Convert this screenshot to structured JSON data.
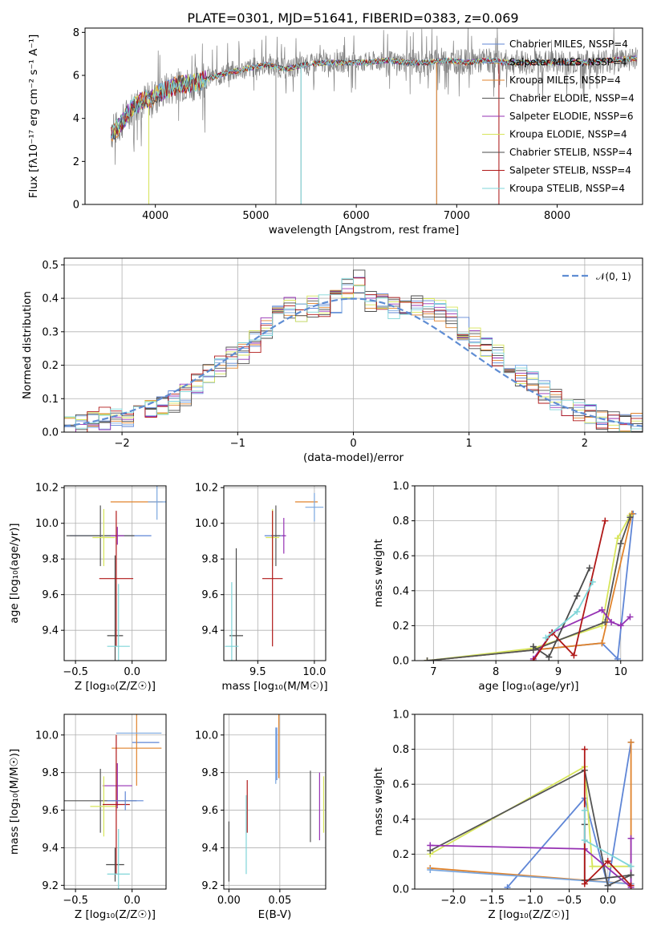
{
  "colors": {
    "chabrier_miles": "#5f86d6",
    "salpeter_miles": "#7aa7df",
    "kroupa_miles": "#e0832c",
    "chabrier_elodie": "#555555",
    "salpeter_elodie": "#9632b3",
    "kroupa_elodie": "#d7e55a",
    "chabrier_stelib": "#4a4a4a",
    "salpeter_stelib": "#b01818",
    "kroupa_stelib": "#7fd5d8",
    "data_grey": "#808080",
    "normal_curve": "#5f8dd3"
  },
  "chart_data": [
    {
      "type": "line",
      "title": "PLATE=0301, MJD=51641, FIBERID=0383, z=0.069",
      "xlabel": "wavelength [Angstrom, rest frame]",
      "ylabel": "Flux [fλ10⁻¹⁷ erg cm⁻² s⁻¹ A⁻¹]",
      "xlim": [
        3300,
        8850
      ],
      "ylim": [
        0,
        8.2
      ],
      "xticks": [
        "4000",
        "5000",
        "6000",
        "7000",
        "8000"
      ],
      "yticks": [
        "0",
        "2",
        "4",
        "6",
        "8"
      ],
      "grid": false,
      "legend_position": "right",
      "legend": [
        "Chabrier MILES, NSSP=4",
        "Salpeter MILES, NSSP=4",
        "Kroupa MILES, NSSP=4",
        "Chabrier ELODIE, NSSP=4",
        "Salpeter ELODIE, NSSP=6",
        "Kroupa ELODIE, NSSP=4",
        "Chabrier STELIB, NSSP=4",
        "Salpeter STELIB, NSSP=4",
        "Kroupa STELIB, NSSP=4"
      ],
      "continuum": {
        "x": [
          3560,
          3650,
          3750,
          3850,
          3950,
          4050,
          4150,
          4250,
          4350,
          4500,
          4700,
          4900,
          5100,
          5300,
          5500,
          5700,
          5900,
          6100,
          6300,
          6500,
          6700,
          6900,
          7100,
          7300,
          7500,
          7700,
          7900,
          8100,
          8300,
          8500,
          8800
        ],
        "y": [
          3.3,
          3.7,
          4.4,
          4.8,
          4.9,
          5.2,
          5.4,
          5.6,
          5.6,
          5.8,
          6.1,
          6.3,
          6.5,
          6.3,
          6.5,
          6.6,
          6.6,
          6.6,
          6.7,
          6.6,
          6.6,
          6.7,
          6.6,
          6.7,
          6.6,
          6.6,
          6.6,
          6.6,
          6.6,
          6.7,
          6.8
        ]
      }
    },
    {
      "type": "line",
      "xlabel": "(data-model)/error",
      "ylabel": "Normed distribution",
      "xlim": [
        -2.5,
        2.5
      ],
      "ylim": [
        0,
        0.52
      ],
      "xticks": [
        "−2",
        "−1",
        "0",
        "1",
        "2"
      ],
      "yticks": [
        "0.0",
        "0.1",
        "0.2",
        "0.3",
        "0.4",
        "0.5"
      ],
      "grid": true,
      "legend": [
        "𝒩(0, 1)"
      ],
      "histogram_bins": {
        "x": [
          -2.5,
          -2.4,
          -2.3,
          -2.2,
          -2.1,
          -2.0,
          -1.9,
          -1.8,
          -1.7,
          -1.6,
          -1.5,
          -1.4,
          -1.3,
          -1.2,
          -1.1,
          -1.0,
          -0.9,
          -0.8,
          -0.7,
          -0.6,
          -0.5,
          -0.4,
          -0.3,
          -0.2,
          -0.1,
          0.0,
          0.1,
          0.2,
          0.3,
          0.4,
          0.5,
          0.6,
          0.7,
          0.8,
          0.9,
          1.0,
          1.1,
          1.2,
          1.3,
          1.4,
          1.5,
          1.6,
          1.7,
          1.8,
          1.9,
          2.0,
          2.1,
          2.2,
          2.3,
          2.4
        ],
        "y": [
          0.02,
          0.025,
          0.035,
          0.04,
          0.045,
          0.05,
          0.06,
          0.068,
          0.08,
          0.09,
          0.11,
          0.14,
          0.17,
          0.2,
          0.22,
          0.235,
          0.27,
          0.31,
          0.36,
          0.37,
          0.36,
          0.375,
          0.38,
          0.39,
          0.43,
          0.45,
          0.39,
          0.38,
          0.37,
          0.36,
          0.38,
          0.37,
          0.36,
          0.34,
          0.31,
          0.28,
          0.25,
          0.23,
          0.2,
          0.17,
          0.15,
          0.12,
          0.1,
          0.08,
          0.065,
          0.05,
          0.04,
          0.035,
          0.03,
          0.025
        ]
      }
    },
    {
      "type": "scatter",
      "xlabel": "Z [log₁₀(Z/Z☉)]",
      "ylabel": "age  [log₁₀(age/yr)]",
      "xlim": [
        -0.6,
        0.3
      ],
      "ylim": [
        9.23,
        10.21
      ],
      "xticks": [
        "−0.5",
        "0.0"
      ],
      "yticks": [
        "9.4",
        "9.6",
        "9.8",
        "10.0",
        "10.2"
      ],
      "grid": true,
      "points": [
        {
          "series": "chabrier_miles",
          "x": -0.19,
          "y": 9.93,
          "xerr": 0.36,
          "yerr": 0.0
        },
        {
          "series": "kroupa_miles",
          "x": 0.04,
          "y": 10.12,
          "xerr": 0.23,
          "yerr": 0.0
        },
        {
          "series": "chabrier_elodie",
          "x": -0.28,
          "y": 9.93,
          "xerr": 0.3,
          "yerr": 0.17
        },
        {
          "series": "salpeter_elodie",
          "x": -0.13,
          "y": 9.93,
          "xerr": 0.06,
          "yerr": 0.05
        },
        {
          "series": "kroupa_elodie",
          "x": -0.25,
          "y": 9.92,
          "xerr": 0.1,
          "yerr": 0.16
        },
        {
          "series": "chabrier_stelib",
          "x": -0.15,
          "y": 9.37,
          "xerr": 0.07,
          "yerr": 0.45
        },
        {
          "series": "salpeter_stelib",
          "x": -0.14,
          "y": 9.69,
          "xerr": 0.15,
          "yerr": 0.38
        },
        {
          "series": "kroupa_stelib",
          "x": -0.12,
          "y": 9.31,
          "xerr": 0.1,
          "yerr": 0.35
        },
        {
          "series": "salpeter_miles",
          "x": 0.22,
          "y": 10.12,
          "xerr": 0.08,
          "yerr": 0.1
        }
      ]
    },
    {
      "type": "scatter",
      "xlabel": "mass [log₁₀(M/M☉)]",
      "ylabel": "",
      "xlim": [
        9.2,
        10.1
      ],
      "ylim": [
        9.23,
        10.21
      ],
      "xticks": [
        "9.5",
        "10.0"
      ],
      "yticks": [
        "9.4",
        "9.6",
        "9.8",
        "10.0",
        "10.2"
      ],
      "grid": true,
      "points": [
        {
          "series": "chabrier_miles",
          "x": 9.65,
          "y": 9.93,
          "xerr": 0.09,
          "yerr": 0.0
        },
        {
          "series": "kroupa_miles",
          "x": 9.93,
          "y": 10.12,
          "xerr": 0.1,
          "yerr": 0.0
        },
        {
          "series": "chabrier_elodie",
          "x": 9.66,
          "y": 9.93,
          "xerr": 0.04,
          "yerr": 0.17
        },
        {
          "series": "salpeter_elodie",
          "x": 9.73,
          "y": 9.93,
          "xerr": 0.02,
          "yerr": 0.1
        },
        {
          "series": "kroupa_elodie",
          "x": 9.63,
          "y": 9.92,
          "xerr": 0.06,
          "yerr": 0.16
        },
        {
          "series": "chabrier_stelib",
          "x": 9.31,
          "y": 9.37,
          "xerr": 0.06,
          "yerr": 0.49
        },
        {
          "series": "salpeter_stelib",
          "x": 9.63,
          "y": 9.69,
          "xerr": 0.09,
          "yerr": 0.38
        },
        {
          "series": "kroupa_stelib",
          "x": 9.27,
          "y": 9.31,
          "xerr": 0.06,
          "yerr": 0.36
        },
        {
          "series": "salpeter_miles",
          "x": 10.0,
          "y": 10.09,
          "xerr": 0.08,
          "yerr": 0.08
        }
      ]
    },
    {
      "type": "line",
      "xlabel": "age  [log₁₀(age/yr)]",
      "ylabel": "mass weight",
      "xlim": [
        6.7,
        10.35
      ],
      "ylim": [
        0,
        1.0
      ],
      "xticks": [
        "7",
        "8",
        "9",
        "10"
      ],
      "yticks": [
        "0.0",
        "0.2",
        "0.4",
        "0.6",
        "0.8",
        "1.0"
      ],
      "grid": true,
      "series": [
        {
          "key": "chabrier_miles",
          "x": [
            6.9,
            9.7,
            9.95,
            10.2
          ],
          "y": [
            0.0,
            0.1,
            0.01,
            0.84
          ]
        },
        {
          "key": "kroupa_miles",
          "x": [
            6.9,
            9.7,
            10.18
          ],
          "y": [
            0.0,
            0.1,
            0.84
          ]
        },
        {
          "key": "kroupa_elodie",
          "x": [
            6.9,
            8.6,
            9.7,
            9.95,
            10.15
          ],
          "y": [
            0.0,
            0.07,
            0.2,
            0.7,
            0.83
          ]
        },
        {
          "key": "chabrier_elodie",
          "x": [
            6.9,
            8.6,
            9.75,
            10.0,
            10.15
          ],
          "y": [
            0.0,
            0.06,
            0.22,
            0.67,
            0.82
          ]
        },
        {
          "key": "salpeter_elodie",
          "x": [
            8.6,
            8.9,
            9.7,
            9.85,
            10.0,
            10.15
          ],
          "y": [
            0.01,
            0.16,
            0.29,
            0.22,
            0.2,
            0.25
          ]
        },
        {
          "key": "chabrier_stelib",
          "x": [
            8.6,
            8.85,
            9.3,
            9.5
          ],
          "y": [
            0.08,
            0.02,
            0.37,
            0.53
          ]
        },
        {
          "key": "salpeter_stelib",
          "x": [
            8.6,
            8.9,
            9.25,
            9.75
          ],
          "y": [
            0.0,
            0.16,
            0.03,
            0.8
          ]
        },
        {
          "key": "kroupa_stelib",
          "x": [
            8.8,
            9.3,
            9.55
          ],
          "y": [
            0.13,
            0.28,
            0.45
          ]
        }
      ]
    },
    {
      "type": "scatter",
      "xlabel": "Z [log₁₀(Z/Z☉)]",
      "ylabel": "mass [log₁₀(M/M☉)]",
      "xlim": [
        -0.6,
        0.3
      ],
      "ylim": [
        9.18,
        10.11
      ],
      "xticks": [
        "−0.5",
        "0.0"
      ],
      "yticks": [
        "9.2",
        "9.4",
        "9.6",
        "9.8",
        "10.0"
      ],
      "grid": true,
      "points": [
        {
          "series": "chabrier_miles",
          "x": 0.12,
          "y": 9.96,
          "xerr": 0.12,
          "yerr": 0.0
        },
        {
          "series": "kroupa_miles",
          "x": 0.04,
          "y": 9.93,
          "xerr": 0.22,
          "yerr": 0.2
        },
        {
          "series": "chabrier_elodie",
          "x": -0.28,
          "y": 9.65,
          "xerr": 0.32,
          "yerr": 0.17
        },
        {
          "series": "salpeter_elodie",
          "x": -0.13,
          "y": 9.73,
          "xerr": 0.13,
          "yerr": 0.12
        },
        {
          "series": "kroupa_elodie",
          "x": -0.25,
          "y": 9.62,
          "xerr": 0.12,
          "yerr": 0.16
        },
        {
          "series": "chabrier_stelib",
          "x": -0.15,
          "y": 9.31,
          "xerr": 0.08,
          "yerr": 0.09
        },
        {
          "series": "salpeter_stelib",
          "x": -0.14,
          "y": 9.63,
          "xerr": 0.12,
          "yerr": 0.37
        },
        {
          "series": "kroupa_stelib",
          "x": -0.12,
          "y": 9.26,
          "xerr": 0.1,
          "yerr": 0.24
        },
        {
          "series": "salpeter_miles",
          "x": 0.06,
          "y": 10.01,
          "xerr": 0.2,
          "yerr": 0.0
        },
        {
          "series": "chabrier_miles",
          "x": -0.06,
          "y": 9.65,
          "xerr": 0.16,
          "yerr": 0.05
        }
      ]
    },
    {
      "type": "scatter",
      "xlabel": "E(B-V)",
      "ylabel": "",
      "xlim": [
        -0.005,
        0.095
      ],
      "ylim": [
        9.18,
        10.11
      ],
      "xticks": [
        "0.00",
        "0.05"
      ],
      "yticks": [
        "9.2",
        "9.4",
        "9.6",
        "9.8",
        "10.0"
      ],
      "grid": true,
      "points": [
        {
          "series": "chabrier_stelib",
          "x": 0.0,
          "y": 9.38,
          "yerr": 0.16
        },
        {
          "series": "salpeter_stelib",
          "x": 0.018,
          "y": 9.62,
          "yerr": 0.14
        },
        {
          "series": "kroupa_stelib",
          "x": 0.017,
          "y": 9.47,
          "yerr": 0.21
        },
        {
          "series": "salpeter_miles",
          "x": 0.046,
          "y": 9.89,
          "yerr": 0.15
        },
        {
          "series": "kroupa_miles",
          "x": 0.049,
          "y": 9.94,
          "yerr": 0.17
        },
        {
          "series": "chabrier_elodie",
          "x": 0.08,
          "y": 9.62,
          "yerr": 0.19
        },
        {
          "series": "salpeter_elodie",
          "x": 0.089,
          "y": 9.62,
          "yerr": 0.18
        },
        {
          "series": "kroupa_elodie",
          "x": 0.093,
          "y": 9.63,
          "yerr": 0.15
        },
        {
          "series": "chabrier_miles",
          "x": 0.047,
          "y": 9.9,
          "yerr": 0.14
        }
      ]
    },
    {
      "type": "line",
      "xlabel": "Z [log₁₀(Z/Z☉)]",
      "ylabel": "mass weight",
      "xlim": [
        -2.5,
        0.45
      ],
      "ylim": [
        0,
        1.0
      ],
      "xticks": [
        "−2.0",
        "−1.5",
        "−1.0",
        "−0.5",
        "0.0"
      ],
      "yticks": [
        "0.0",
        "0.2",
        "0.4",
        "0.6",
        "0.8",
        "1.0"
      ],
      "grid": true,
      "series": [
        {
          "key": "chabrier_miles",
          "x": [
            -1.3,
            -0.3,
            0.0,
            0.3
          ],
          "y": [
            0.01,
            0.52,
            0.02,
            0.84
          ]
        },
        {
          "key": "kroupa_miles",
          "x": [
            -2.3,
            0.3,
            0.3
          ],
          "y": [
            0.12,
            0.03,
            0.84
          ]
        },
        {
          "key": "salpeter_miles",
          "x": [
            -2.3,
            0.3
          ],
          "y": [
            0.11,
            0.03
          ]
        },
        {
          "key": "kroupa_elodie",
          "x": [
            -2.3,
            -0.3,
            -0.2,
            0.3
          ],
          "y": [
            0.2,
            0.7,
            0.13,
            0.13
          ]
        },
        {
          "key": "chabrier_elodie",
          "x": [
            -2.3,
            -0.3,
            0.0,
            0.3
          ],
          "y": [
            0.22,
            0.68,
            0.02,
            0.08
          ]
        },
        {
          "key": "salpeter_elodie",
          "x": [
            -2.3,
            -0.3,
            0.3,
            0.3
          ],
          "y": [
            0.25,
            0.23,
            0.01,
            0.29
          ]
        },
        {
          "key": "chabrier_stelib",
          "x": [
            -0.3,
            -0.3,
            0.3
          ],
          "y": [
            0.37,
            0.05,
            0.08
          ]
        },
        {
          "key": "salpeter_stelib",
          "x": [
            -0.3,
            -0.3,
            0.0,
            0.3
          ],
          "y": [
            0.8,
            0.03,
            0.16,
            0.02
          ]
        },
        {
          "key": "kroupa_stelib",
          "x": [
            -0.3,
            -0.3,
            0.3
          ],
          "y": [
            0.45,
            0.28,
            0.13
          ]
        }
      ]
    }
  ]
}
